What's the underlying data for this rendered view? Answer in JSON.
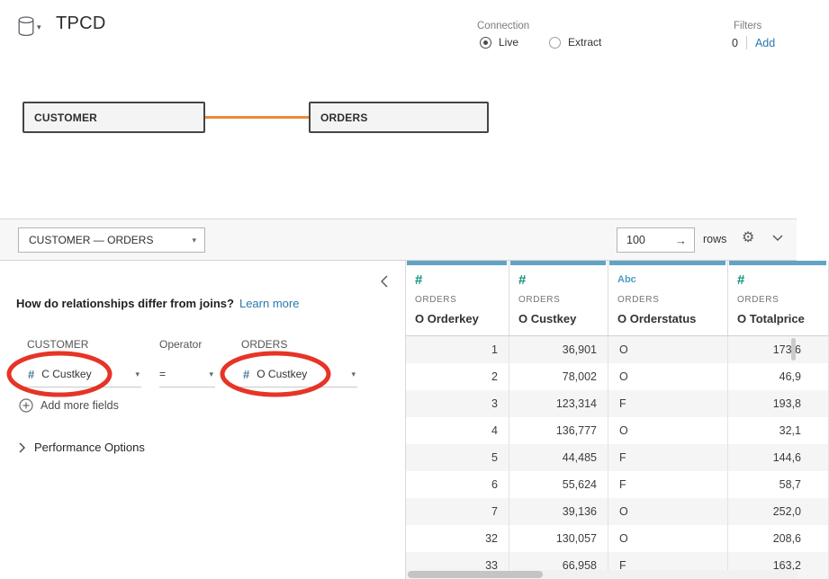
{
  "header": {
    "title": "TPCD",
    "connection": {
      "label": "Connection",
      "options": [
        {
          "label": "Live",
          "selected": true
        },
        {
          "label": "Extract",
          "selected": false
        }
      ]
    },
    "filters": {
      "label": "Filters",
      "count": "0",
      "add_label": "Add"
    }
  },
  "canvas": {
    "left_table": "CUSTOMER",
    "right_table": "ORDERS",
    "connector_color": "#ea8a3c"
  },
  "toolbar": {
    "relationship_pair": "CUSTOMER  —  ORDERS",
    "row_count": "100",
    "rows_label": "rows"
  },
  "relationship_panel": {
    "question": "How do relationships differ from joins?",
    "learn_more_label": "Learn more",
    "left_table_label": "CUSTOMER",
    "operator_label": "Operator",
    "right_table_label": "ORDERS",
    "left_field": "C Custkey",
    "operator_value": "=",
    "right_field": "O Custkey",
    "add_more_fields_label": "Add more fields",
    "performance_options_label": "Performance Options",
    "annotation_color": "#e42313"
  },
  "grid": {
    "columns": [
      {
        "icon_glyph": "#",
        "icon_type": "number",
        "table": "ORDERS",
        "field": "O Orderkey",
        "align": "right"
      },
      {
        "icon_glyph": "#",
        "icon_type": "number",
        "table": "ORDERS",
        "field": "O Custkey",
        "align": "right"
      },
      {
        "icon_glyph": "Abc",
        "icon_type": "string",
        "table": "ORDERS",
        "field": "O Orderstatus",
        "align": "left"
      },
      {
        "icon_glyph": "#",
        "icon_type": "number",
        "table": "ORDERS",
        "field": "O Totalprice",
        "align": "right"
      }
    ],
    "rows": [
      [
        "1",
        "36,901",
        "O",
        "173,6"
      ],
      [
        "2",
        "78,002",
        "O",
        "46,9"
      ],
      [
        "3",
        "123,314",
        "F",
        "193,8"
      ],
      [
        "4",
        "136,777",
        "O",
        "32,1"
      ],
      [
        "5",
        "44,485",
        "F",
        "144,6"
      ],
      [
        "6",
        "55,624",
        "F",
        "58,7"
      ],
      [
        "7",
        "39,136",
        "O",
        "252,0"
      ],
      [
        "32",
        "130,057",
        "O",
        "208,6"
      ],
      [
        "33",
        "66,958",
        "F",
        "163,2"
      ]
    ]
  },
  "colors": {
    "accent_link": "#2a79af",
    "number_icon_green": "#0f9179",
    "string_icon_blue": "#4f9bc4",
    "field_icon_blue": "#4a7a9e",
    "column_header_bar": "#62a3c5",
    "connector_orange": "#ea8a3c",
    "annotation_red": "#e42313"
  }
}
